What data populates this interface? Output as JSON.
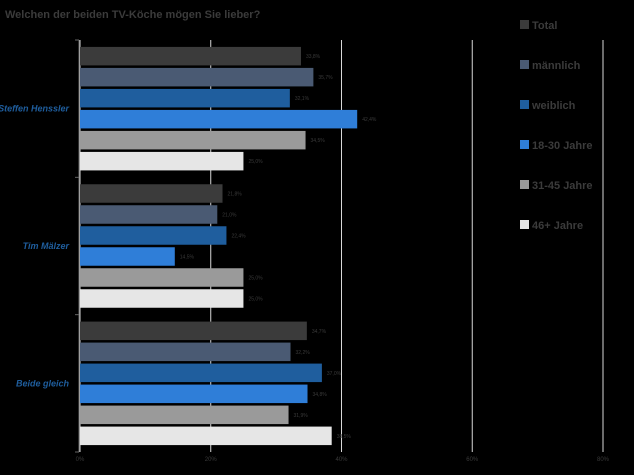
{
  "chart_data": {
    "type": "bar",
    "orientation": "horizontal",
    "title": "Welchen der beiden TV-Köche mögen Sie lieber?",
    "categories": [
      "Steffen Henssler",
      "Tim Mälzer",
      "Beide gleich"
    ],
    "series": [
      {
        "name": "Total",
        "color": "#3b3b3b",
        "values": [
          33.8,
          21.8,
          34.7
        ],
        "labels": [
          "33,8%",
          "21,8%",
          "34,7%"
        ]
      },
      {
        "name": "männlich",
        "color": "#4a5a73",
        "values": [
          35.7,
          21.0,
          32.2
        ],
        "labels": [
          "35,7%",
          "21,0%",
          "32,2%"
        ]
      },
      {
        "name": "weiblich",
        "color": "#1f5e9e",
        "values": [
          32.1,
          22.4,
          37.0
        ],
        "labels": [
          "32,1%",
          "22,4%",
          "37,0%"
        ]
      },
      {
        "name": "18-30 Jahre",
        "color": "#2f7ed8",
        "values": [
          42.4,
          14.5,
          34.8
        ],
        "labels": [
          "42,4%",
          "14,5%",
          "34,8%"
        ]
      },
      {
        "name": "31-45 Jahre",
        "color": "#9a9a9a",
        "values": [
          34.5,
          25.0,
          31.9
        ],
        "labels": [
          "34,5%",
          "25,0%",
          "31,9%"
        ]
      },
      {
        "name": "46+ Jahre",
        "color": "#e6e6e6",
        "values": [
          25.0,
          25.0,
          38.5
        ],
        "labels": [
          "25,0%",
          "25,0%",
          "38,5%"
        ]
      }
    ],
    "xlim": [
      0,
      80
    ],
    "xticks": [
      0,
      20,
      40,
      60,
      80
    ],
    "xtick_labels": [
      "0%",
      "20%",
      "40%",
      "60%",
      "80%"
    ],
    "grid": true,
    "legend_position": "right",
    "category_label_color": "#1f5e9e"
  }
}
